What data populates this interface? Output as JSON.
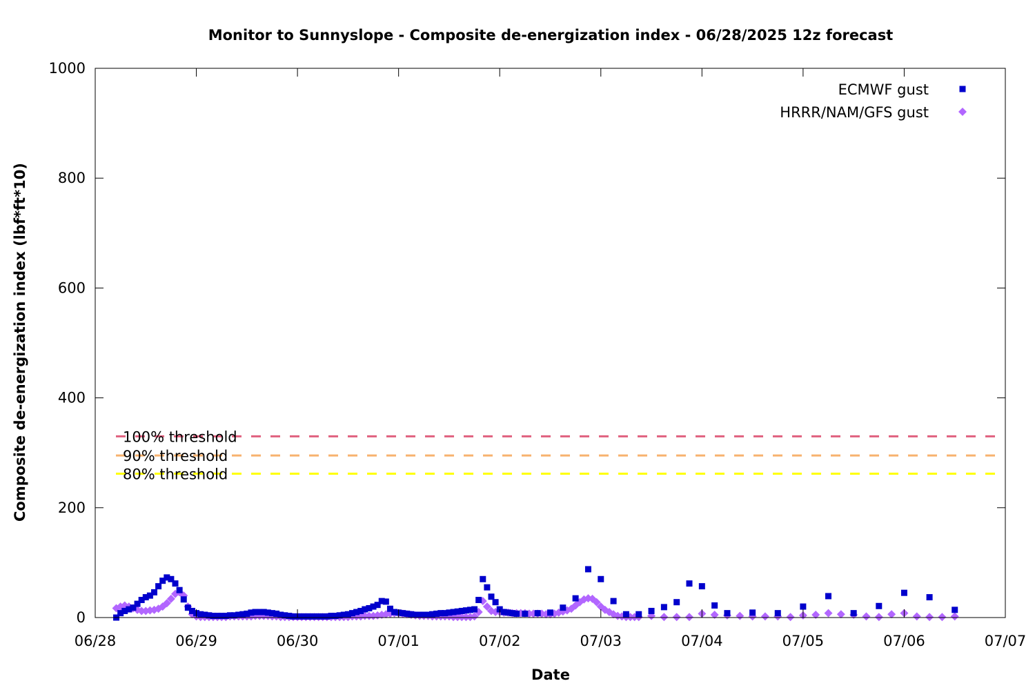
{
  "chart_data": {
    "type": "scatter",
    "title": "Monitor to Sunnyslope - Composite de-energization index - 06/28/2025 12z forecast",
    "xlabel": "Date",
    "ylabel": "Composite de-energization index (lbf*ft*10)",
    "x_unit": "days",
    "x_range": [
      "06/28",
      "07/07"
    ],
    "x_ticks": [
      "06/28",
      "06/29",
      "06/30",
      "07/01",
      "07/02",
      "07/03",
      "07/04",
      "07/05",
      "07/06",
      "07/07"
    ],
    "ylim": [
      0,
      1000
    ],
    "y_ticks": [
      0,
      200,
      400,
      600,
      800,
      1000
    ],
    "grid": false,
    "legend_position": "top-right",
    "thresholds": [
      {
        "label": "100% threshold",
        "value": 330,
        "color": "#e0607e"
      },
      {
        "label": "90% threshold",
        "value": 295,
        "color": "#f7b26e"
      },
      {
        "label": "80% threshold",
        "value": 262,
        "color": "#ffff00"
      }
    ],
    "series": [
      {
        "name": "ECMWF gust",
        "marker": "square",
        "color": "#0000cc",
        "points": [
          [
            "06/28 05:00",
            0
          ],
          [
            "06/28 06:00",
            8
          ],
          [
            "06/28 07:00",
            12
          ],
          [
            "06/28 08:00",
            15
          ],
          [
            "06/28 09:00",
            18
          ],
          [
            "06/28 10:00",
            25
          ],
          [
            "06/28 11:00",
            32
          ],
          [
            "06/28 12:00",
            37
          ],
          [
            "06/28 13:00",
            40
          ],
          [
            "06/28 14:00",
            46
          ],
          [
            "06/28 15:00",
            57
          ],
          [
            "06/28 16:00",
            67
          ],
          [
            "06/28 17:00",
            73
          ],
          [
            "06/28 18:00",
            70
          ],
          [
            "06/28 19:00",
            62
          ],
          [
            "06/28 20:00",
            50
          ],
          [
            "06/28 21:00",
            33
          ],
          [
            "06/28 22:00",
            18
          ],
          [
            "06/28 23:00",
            12
          ],
          [
            "06/29 00:00",
            8
          ],
          [
            "06/29 01:00",
            6
          ],
          [
            "06/29 02:00",
            5
          ],
          [
            "06/29 03:00",
            4
          ],
          [
            "06/29 04:00",
            3
          ],
          [
            "06/29 05:00",
            3
          ],
          [
            "06/29 06:00",
            3
          ],
          [
            "06/29 07:00",
            3
          ],
          [
            "06/29 08:00",
            4
          ],
          [
            "06/29 09:00",
            4
          ],
          [
            "06/29 10:00",
            5
          ],
          [
            "06/29 11:00",
            6
          ],
          [
            "06/29 12:00",
            7
          ],
          [
            "06/29 13:00",
            9
          ],
          [
            "06/29 14:00",
            10
          ],
          [
            "06/29 15:00",
            10
          ],
          [
            "06/29 16:00",
            10
          ],
          [
            "06/29 17:00",
            9
          ],
          [
            "06/29 18:00",
            8
          ],
          [
            "06/29 19:00",
            7
          ],
          [
            "06/29 20:00",
            5
          ],
          [
            "06/29 21:00",
            4
          ],
          [
            "06/29 22:00",
            3
          ],
          [
            "06/29 23:00",
            2
          ],
          [
            "06/30 00:00",
            2
          ],
          [
            "06/30 01:00",
            2
          ],
          [
            "06/30 02:00",
            2
          ],
          [
            "06/30 03:00",
            2
          ],
          [
            "06/30 04:00",
            2
          ],
          [
            "06/30 05:00",
            2
          ],
          [
            "06/30 06:00",
            2
          ],
          [
            "06/30 07:00",
            2
          ],
          [
            "06/30 08:00",
            3
          ],
          [
            "06/30 09:00",
            3
          ],
          [
            "06/30 10:00",
            4
          ],
          [
            "06/30 11:00",
            5
          ],
          [
            "06/30 12:00",
            6
          ],
          [
            "06/30 13:00",
            8
          ],
          [
            "06/30 14:00",
            10
          ],
          [
            "06/30 15:00",
            12
          ],
          [
            "06/30 16:00",
            15
          ],
          [
            "06/30 17:00",
            17
          ],
          [
            "06/30 18:00",
            20
          ],
          [
            "06/30 19:00",
            23
          ],
          [
            "06/30 20:00",
            30
          ],
          [
            "06/30 21:00",
            29
          ],
          [
            "06/30 22:00",
            16
          ],
          [
            "06/30 23:00",
            10
          ],
          [
            "07/01 00:00",
            9
          ],
          [
            "07/01 01:00",
            8
          ],
          [
            "07/01 02:00",
            7
          ],
          [
            "07/01 03:00",
            6
          ],
          [
            "07/01 04:00",
            5
          ],
          [
            "07/01 05:00",
            5
          ],
          [
            "07/01 06:00",
            5
          ],
          [
            "07/01 07:00",
            5
          ],
          [
            "07/01 08:00",
            6
          ],
          [
            "07/01 09:00",
            7
          ],
          [
            "07/01 10:00",
            8
          ],
          [
            "07/01 11:00",
            8
          ],
          [
            "07/01 12:00",
            9
          ],
          [
            "07/01 13:00",
            10
          ],
          [
            "07/01 14:00",
            11
          ],
          [
            "07/01 15:00",
            12
          ],
          [
            "07/01 16:00",
            13
          ],
          [
            "07/01 17:00",
            14
          ],
          [
            "07/01 18:00",
            15
          ],
          [
            "07/01 19:00",
            32
          ],
          [
            "07/01 20:00",
            70
          ],
          [
            "07/01 21:00",
            55
          ],
          [
            "07/01 22:00",
            38
          ],
          [
            "07/01 23:00",
            28
          ],
          [
            "07/02 00:00",
            15
          ],
          [
            "07/02 01:00",
            10
          ],
          [
            "07/02 02:00",
            9
          ],
          [
            "07/02 03:00",
            8
          ],
          [
            "07/02 04:00",
            7
          ],
          [
            "07/02 06:00",
            7
          ],
          [
            "07/02 09:00",
            8
          ],
          [
            "07/02 12:00",
            9
          ],
          [
            "07/02 15:00",
            18
          ],
          [
            "07/02 18:00",
            35
          ],
          [
            "07/02 21:00",
            88
          ],
          [
            "07/03 00:00",
            70
          ],
          [
            "07/03 03:00",
            30
          ],
          [
            "07/03 06:00",
            6
          ],
          [
            "07/03 09:00",
            6
          ],
          [
            "07/03 12:00",
            12
          ],
          [
            "07/03 15:00",
            19
          ],
          [
            "07/03 18:00",
            28
          ],
          [
            "07/03 21:00",
            62
          ],
          [
            "07/04 00:00",
            57
          ],
          [
            "07/04 03:00",
            22
          ],
          [
            "07/04 06:00",
            8
          ],
          [
            "07/04 12:00",
            9
          ],
          [
            "07/04 18:00",
            8
          ],
          [
            "07/05 00:00",
            20
          ],
          [
            "07/05 06:00",
            39
          ],
          [
            "07/05 12:00",
            8
          ],
          [
            "07/05 18:00",
            21
          ],
          [
            "07/06 00:00",
            45
          ],
          [
            "07/06 06:00",
            37
          ],
          [
            "07/06 12:00",
            14
          ]
        ]
      },
      {
        "name": "HRRR/NAM/GFS gust",
        "marker": "diamond",
        "color": "#b266ff",
        "points": [
          [
            "06/28 05:00",
            17
          ],
          [
            "06/28 06:00",
            20
          ],
          [
            "06/28 07:00",
            22
          ],
          [
            "06/28 08:00",
            20
          ],
          [
            "06/28 09:00",
            17
          ],
          [
            "06/28 10:00",
            14
          ],
          [
            "06/28 11:00",
            12
          ],
          [
            "06/28 12:00",
            12
          ],
          [
            "06/28 13:00",
            13
          ],
          [
            "06/28 14:00",
            14
          ],
          [
            "06/28 15:00",
            16
          ],
          [
            "06/28 16:00",
            20
          ],
          [
            "06/28 17:00",
            26
          ],
          [
            "06/28 18:00",
            34
          ],
          [
            "06/28 19:00",
            43
          ],
          [
            "06/28 20:00",
            46
          ],
          [
            "06/28 21:00",
            40
          ],
          [
            "06/28 22:00",
            20
          ],
          [
            "06/28 23:00",
            6
          ],
          [
            "06/29 00:00",
            2
          ],
          [
            "06/29 01:00",
            1
          ],
          [
            "06/29 02:00",
            1
          ],
          [
            "06/29 03:00",
            1
          ],
          [
            "06/29 04:00",
            1
          ],
          [
            "06/29 05:00",
            1
          ],
          [
            "06/29 06:00",
            1
          ],
          [
            "06/29 07:00",
            1
          ],
          [
            "06/29 08:00",
            2
          ],
          [
            "06/29 09:00",
            2
          ],
          [
            "06/29 10:00",
            2
          ],
          [
            "06/29 11:00",
            2
          ],
          [
            "06/29 12:00",
            2
          ],
          [
            "06/29 13:00",
            2
          ],
          [
            "06/29 14:00",
            3
          ],
          [
            "06/29 15:00",
            3
          ],
          [
            "06/29 16:00",
            3
          ],
          [
            "06/29 17:00",
            3
          ],
          [
            "06/29 18:00",
            2
          ],
          [
            "06/29 19:00",
            2
          ],
          [
            "06/29 20:00",
            1
          ],
          [
            "06/29 21:00",
            1
          ],
          [
            "06/29 22:00",
            1
          ],
          [
            "06/29 23:00",
            1
          ],
          [
            "06/30 00:00",
            1
          ],
          [
            "06/30 01:00",
            1
          ],
          [
            "06/30 02:00",
            1
          ],
          [
            "06/30 03:00",
            1
          ],
          [
            "06/30 04:00",
            1
          ],
          [
            "06/30 05:00",
            1
          ],
          [
            "06/30 06:00",
            1
          ],
          [
            "06/30 07:00",
            1
          ],
          [
            "06/30 08:00",
            1
          ],
          [
            "06/30 09:00",
            1
          ],
          [
            "06/30 10:00",
            1
          ],
          [
            "06/30 11:00",
            1
          ],
          [
            "06/30 12:00",
            1
          ],
          [
            "06/30 13:00",
            2
          ],
          [
            "06/30 14:00",
            2
          ],
          [
            "06/30 15:00",
            2
          ],
          [
            "06/30 16:00",
            3
          ],
          [
            "06/30 17:00",
            3
          ],
          [
            "06/30 18:00",
            3
          ],
          [
            "06/30 19:00",
            4
          ],
          [
            "06/30 20:00",
            5
          ],
          [
            "06/30 21:00",
            6
          ],
          [
            "06/30 22:00",
            7
          ],
          [
            "06/30 23:00",
            8
          ],
          [
            "07/01 00:00",
            8
          ],
          [
            "07/01 01:00",
            7
          ],
          [
            "07/01 02:00",
            6
          ],
          [
            "07/01 03:00",
            5
          ],
          [
            "07/01 04:00",
            4
          ],
          [
            "07/01 05:00",
            3
          ],
          [
            "07/01 06:00",
            3
          ],
          [
            "07/01 07:00",
            3
          ],
          [
            "07/01 08:00",
            2
          ],
          [
            "07/01 09:00",
            2
          ],
          [
            "07/01 10:00",
            2
          ],
          [
            "07/01 11:00",
            2
          ],
          [
            "07/01 12:00",
            2
          ],
          [
            "07/01 13:00",
            1
          ],
          [
            "07/01 14:00",
            1
          ],
          [
            "07/01 15:00",
            1
          ],
          [
            "07/01 16:00",
            1
          ],
          [
            "07/01 17:00",
            1
          ],
          [
            "07/01 18:00",
            2
          ],
          [
            "07/01 19:00",
            10
          ],
          [
            "07/01 20:00",
            30
          ],
          [
            "07/01 21:00",
            20
          ],
          [
            "07/01 22:00",
            12
          ],
          [
            "07/01 23:00",
            10
          ],
          [
            "07/02 00:00",
            10
          ],
          [
            "07/02 01:00",
            9
          ],
          [
            "07/02 02:00",
            9
          ],
          [
            "07/02 03:00",
            8
          ],
          [
            "07/02 04:00",
            8
          ],
          [
            "07/02 05:00",
            8
          ],
          [
            "07/02 06:00",
            8
          ],
          [
            "07/02 07:00",
            7
          ],
          [
            "07/02 08:00",
            7
          ],
          [
            "07/02 09:00",
            7
          ],
          [
            "07/02 10:00",
            7
          ],
          [
            "07/02 11:00",
            6
          ],
          [
            "07/02 12:00",
            6
          ],
          [
            "07/02 13:00",
            7
          ],
          [
            "07/02 14:00",
            9
          ],
          [
            "07/02 15:00",
            11
          ],
          [
            "07/02 16:00",
            13
          ],
          [
            "07/02 17:00",
            16
          ],
          [
            "07/02 18:00",
            22
          ],
          [
            "07/02 19:00",
            28
          ],
          [
            "07/02 20:00",
            33
          ],
          [
            "07/02 21:00",
            35
          ],
          [
            "07/02 22:00",
            34
          ],
          [
            "07/02 23:00",
            28
          ],
          [
            "07/03 00:00",
            20
          ],
          [
            "07/03 01:00",
            14
          ],
          [
            "07/03 02:00",
            10
          ],
          [
            "07/03 03:00",
            6
          ],
          [
            "07/03 04:00",
            3
          ],
          [
            "07/03 05:00",
            2
          ],
          [
            "07/03 06:00",
            1
          ],
          [
            "07/03 07:00",
            1
          ],
          [
            "07/03 08:00",
            1
          ],
          [
            "07/03 09:00",
            1
          ],
          [
            "07/03 12:00",
            3
          ],
          [
            "07/03 15:00",
            1
          ],
          [
            "07/03 18:00",
            1
          ],
          [
            "07/03 21:00",
            1
          ],
          [
            "07/04 00:00",
            7
          ],
          [
            "07/04 03:00",
            5
          ],
          [
            "07/04 06:00",
            4
          ],
          [
            "07/04 09:00",
            3
          ],
          [
            "07/04 12:00",
            2
          ],
          [
            "07/04 15:00",
            2
          ],
          [
            "07/04 18:00",
            2
          ],
          [
            "07/04 21:00",
            1
          ],
          [
            "07/05 00:00",
            4
          ],
          [
            "07/05 03:00",
            5
          ],
          [
            "07/05 06:00",
            8
          ],
          [
            "07/05 09:00",
            6
          ],
          [
            "07/05 12:00",
            5
          ],
          [
            "07/05 15:00",
            2
          ],
          [
            "07/05 18:00",
            1
          ],
          [
            "07/05 21:00",
            6
          ],
          [
            "07/06 00:00",
            8
          ],
          [
            "07/06 03:00",
            2
          ],
          [
            "07/06 06:00",
            1
          ],
          [
            "07/06 09:00",
            1
          ],
          [
            "07/06 12:00",
            2
          ]
        ]
      }
    ]
  }
}
